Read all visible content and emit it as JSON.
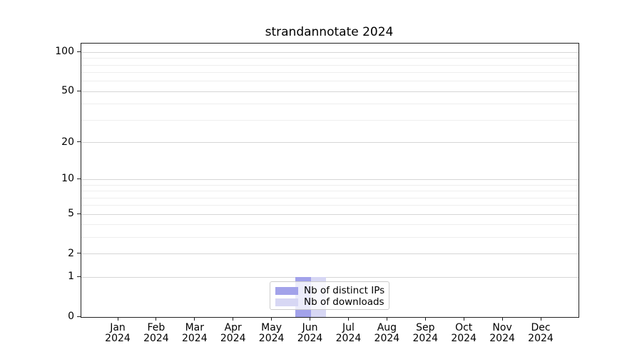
{
  "chart_data": {
    "type": "bar",
    "title": "strandannotate 2024",
    "categories": [
      "Jan 2024",
      "Feb 2024",
      "Mar 2024",
      "Apr 2024",
      "May 2024",
      "Jun 2024",
      "Jul 2024",
      "Aug 2024",
      "Sep 2024",
      "Oct 2024",
      "Nov 2024",
      "Dec 2024"
    ],
    "series": [
      {
        "name": "Nb of distinct IPs",
        "color": "#a2a2ea",
        "values": [
          0,
          0,
          0,
          0,
          0,
          1,
          0,
          0,
          0,
          0,
          0,
          0
        ]
      },
      {
        "name": "Nb of downloads",
        "color": "#d7d7f4",
        "values": [
          0,
          0,
          0,
          0,
          0,
          1,
          0,
          0,
          0,
          0,
          0,
          0
        ]
      }
    ],
    "yscale": "log1p",
    "ylim": [
      0,
      117
    ],
    "yticks_major": [
      0,
      1,
      2,
      5,
      10,
      20,
      50,
      100
    ],
    "yticks_minor": [
      3,
      4,
      6,
      7,
      8,
      9,
      30,
      40,
      60,
      70,
      80,
      90
    ],
    "grid": "horizontal",
    "legend_position": "inside-bottom-center",
    "colors": {
      "grid_major": "#d6d6d6",
      "grid_minor": "#eeeeee",
      "axis": "#222222",
      "background": "#ffffff"
    }
  }
}
